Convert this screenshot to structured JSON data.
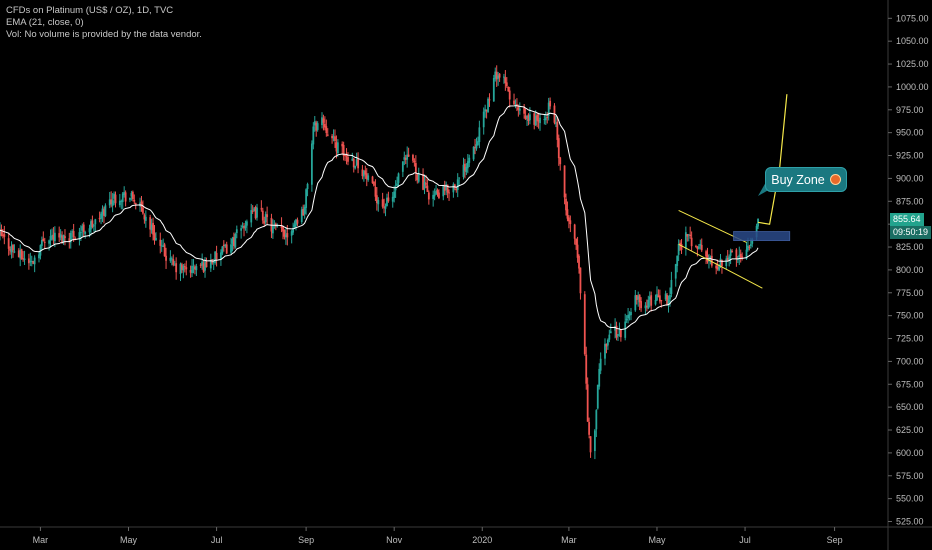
{
  "legend": {
    "title": "CFDs on Platinum (US$ / OZ), 1D, TVC",
    "ema": "EMA (21, close, 0)",
    "vol": "Vol: No volume is provided by the data vendor."
  },
  "annotation": {
    "label": "Buy Zone",
    "icon": "shocked-face-emoji-icon"
  },
  "price_labels": {
    "last_price": "855.64",
    "countdown": "09:50:19"
  },
  "colors": {
    "up": "#26a69a",
    "down": "#ef5350",
    "ema": "#ffffff",
    "channel": "#f5e84a",
    "projection": "#f5e84a",
    "zone": "#2a4a8a",
    "callout": "#1a7880"
  },
  "chart_data": {
    "type": "candlestick",
    "title": "CFDs on Platinum (US$ / OZ), 1D, TVC",
    "xlabel": "",
    "ylabel": "",
    "ylim": [
      519,
      1095
    ],
    "y_ticks": [
      525,
      550,
      575,
      600,
      625,
      650,
      675,
      700,
      725,
      750,
      775,
      800,
      825,
      850,
      875,
      900,
      925,
      950,
      975,
      1000,
      1025,
      1050,
      1075
    ],
    "x_ticks": [
      {
        "label": "Mar",
        "day": 1
      },
      {
        "label": "May",
        "day": 62
      },
      {
        "label": "Jul",
        "day": 123
      },
      {
        "label": "Sep",
        "day": 185
      },
      {
        "label": "Nov",
        "day": 246
      },
      {
        "label": "2020",
        "day": 307
      },
      {
        "label": "Mar",
        "day": 367
      },
      {
        "label": "May",
        "day": 428
      },
      {
        "label": "Jul",
        "day": 489
      },
      {
        "label": "Sep",
        "day": 551
      }
    ],
    "x_range_days": [
      -27,
      588
    ],
    "price_path": [
      [
        -27,
        838
      ],
      [
        -15,
        817
      ],
      [
        -5,
        808
      ],
      [
        5,
        838
      ],
      [
        15,
        835
      ],
      [
        28,
        842
      ],
      [
        40,
        852
      ],
      [
        50,
        878
      ],
      [
        58,
        882
      ],
      [
        66,
        877
      ],
      [
        76,
        852
      ],
      [
        84,
        824
      ],
      [
        94,
        802
      ],
      [
        104,
        800
      ],
      [
        114,
        805
      ],
      [
        124,
        815
      ],
      [
        134,
        830
      ],
      [
        144,
        855
      ],
      [
        152,
        865
      ],
      [
        162,
        845
      ],
      [
        172,
        840
      ],
      [
        184,
        868
      ],
      [
        190,
        955
      ],
      [
        196,
        965
      ],
      [
        204,
        940
      ],
      [
        212,
        925
      ],
      [
        222,
        915
      ],
      [
        232,
        885
      ],
      [
        238,
        870
      ],
      [
        244,
        875
      ],
      [
        252,
        915
      ],
      [
        258,
        925
      ],
      [
        264,
        895
      ],
      [
        272,
        880
      ],
      [
        280,
        885
      ],
      [
        290,
        895
      ],
      [
        298,
        925
      ],
      [
        306,
        955
      ],
      [
        312,
        990
      ],
      [
        317,
        1015
      ],
      [
        322,
        1005
      ],
      [
        328,
        982
      ],
      [
        336,
        965
      ],
      [
        344,
        965
      ],
      [
        350,
        960
      ],
      [
        354,
        985
      ],
      [
        358,
        955
      ],
      [
        363,
        880
      ],
      [
        367,
        850
      ],
      [
        371,
        840
      ],
      [
        374,
        800
      ],
      [
        377,
        740
      ],
      [
        380,
        640
      ],
      [
        382,
        595
      ],
      [
        385,
        630
      ],
      [
        389,
        705
      ],
      [
        396,
        735
      ],
      [
        404,
        730
      ],
      [
        412,
        770
      ],
      [
        420,
        760
      ],
      [
        428,
        772
      ],
      [
        436,
        768
      ],
      [
        442,
        822
      ],
      [
        448,
        835
      ],
      [
        456,
        828
      ],
      [
        464,
        810
      ],
      [
        470,
        806
      ],
      [
        478,
        818
      ],
      [
        484,
        812
      ],
      [
        488,
        822
      ],
      [
        494,
        835
      ],
      [
        498,
        855.64
      ]
    ],
    "ema_period": 21,
    "channel": {
      "upper": [
        [
          443,
          865
        ],
        [
          490,
          830
        ]
      ],
      "lower": [
        [
          443,
          828
        ],
        [
          501,
          780
        ]
      ]
    },
    "projection": [
      [
        498,
        852
      ],
      [
        506,
        850
      ],
      [
        513,
        912
      ],
      [
        518,
        992
      ]
    ],
    "zone": {
      "day_from": 481,
      "day_to": 520,
      "price_from": 832,
      "price_to": 842
    },
    "series": [
      {
        "name": "EMA (21, close, 0)",
        "type": "line"
      }
    ]
  }
}
